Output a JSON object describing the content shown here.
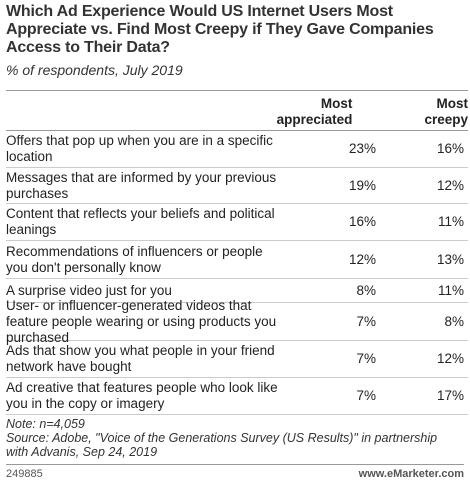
{
  "header": {
    "title": "Which Ad Experience Would US Internet Users Most Appreciate vs. Find Most Creepy if They Gave Companies Access to Their Data?",
    "subtitle": "% of respondents, July 2019"
  },
  "table": {
    "columns": [
      "Most appreciated",
      "Most creepy"
    ],
    "rows": [
      [
        "Offers that pop up when you are in a specific location",
        "23%",
        "16%"
      ],
      [
        "Messages that are informed by your previous purchases",
        "19%",
        "12%"
      ],
      [
        "Content that reflects your beliefs and political leanings",
        "16%",
        "11%"
      ],
      [
        "Recommendations of influencers or people you don't personally know",
        "12%",
        "13%"
      ],
      [
        "A surprise video just for you",
        "8%",
        "11%"
      ],
      [
        "User- or influencer-generated videos that feature people wearing or using products you purchased",
        "7%",
        "8%"
      ],
      [
        "Ads that show you what people in your friend network have bought",
        "7%",
        "12%"
      ],
      [
        "Ad creative that features people who look like you in the copy or imagery",
        "7%",
        "17%"
      ]
    ]
  },
  "notes": [
    "Note: n=4,059",
    "Source: Adobe, \"Voice of the Generations Survey (US Results)\" in partnership with Advanis, Sep 24, 2019"
  ],
  "footer": {
    "id": "249885",
    "site": "www.eMarketer.com"
  }
}
